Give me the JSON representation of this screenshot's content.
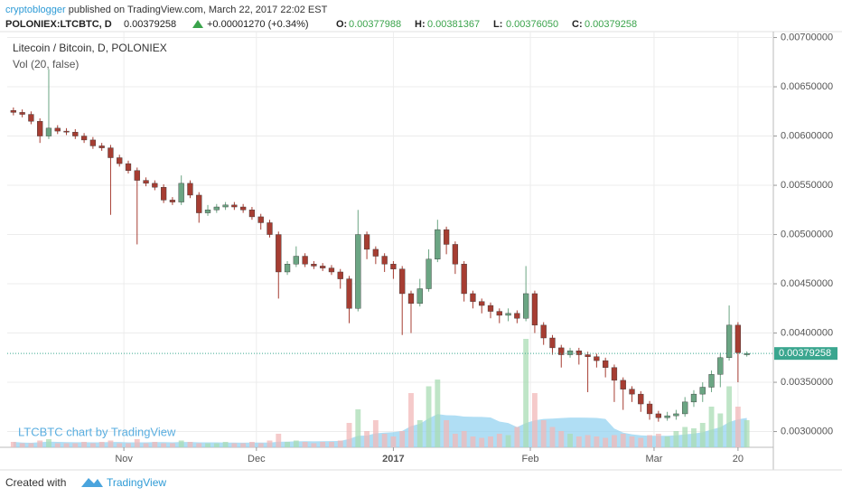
{
  "header": {
    "author": "cryptoblogger",
    "published": "published on TradingView.com, March 22, 2017 22:02 EST",
    "symbol": "POLONIEX:LTCBTC, D",
    "last": "0.00379258",
    "change": "+0.00001270 (+0.34%)",
    "ohlc": [
      {
        "label": "O:",
        "value": "0.00377988"
      },
      {
        "label": "H:",
        "value": "0.00381367"
      },
      {
        "label": "L:",
        "value": "0.00376050"
      },
      {
        "label": "C:",
        "value": "0.00379258"
      }
    ]
  },
  "footer": {
    "created": "Created with",
    "brand": "TradingView"
  },
  "chart_data": {
    "type": "candlestick",
    "title": "Litecoin / Bitcoin, D, POLONIEX",
    "subtitle": "Vol (20, false)",
    "annotation": "LTCBTC chart by TradingView",
    "x": [
      1,
      3,
      5,
      7,
      9,
      11,
      13,
      15,
      17,
      19,
      21,
      23,
      25,
      27,
      29,
      31,
      33,
      35,
      37,
      39,
      41,
      43,
      45,
      47,
      49,
      51,
      53,
      55,
      57,
      59,
      61,
      63,
      65,
      67,
      69,
      71,
      73,
      75,
      77,
      79,
      81,
      83,
      85,
      87,
      89,
      91,
      93,
      95,
      97,
      99,
      101,
      103,
      105,
      107,
      109,
      111,
      113,
      115,
      117,
      119,
      121,
      123,
      125,
      127,
      129,
      131,
      133,
      135,
      137,
      139,
      141,
      143,
      145,
      147,
      149,
      151,
      153,
      155,
      157,
      159,
      161,
      163,
      165,
      167
    ],
    "open": [
      0.00626,
      0.00624,
      0.00622,
      0.00615,
      0.006,
      0.00608,
      0.00605,
      0.00604,
      0.006,
      0.00596,
      0.0059,
      0.00588,
      0.00578,
      0.00572,
      0.00565,
      0.00555,
      0.00552,
      0.00548,
      0.00535,
      0.00533,
      0.00552,
      0.0054,
      0.00522,
      0.00525,
      0.00528,
      0.0053,
      0.00528,
      0.00525,
      0.00518,
      0.00512,
      0.005,
      0.00462,
      0.0047,
      0.00478,
      0.0047,
      0.00468,
      0.00466,
      0.00462,
      0.00455,
      0.00425,
      0.005,
      0.00485,
      0.00478,
      0.0047,
      0.00465,
      0.0044,
      0.0043,
      0.00445,
      0.00475,
      0.00505,
      0.0049,
      0.0047,
      0.0044,
      0.00432,
      0.00428,
      0.00422,
      0.00418,
      0.0042,
      0.00415,
      0.0044,
      0.00408,
      0.00395,
      0.00385,
      0.00378,
      0.00382,
      0.00378,
      0.00376,
      0.00372,
      0.00365,
      0.00352,
      0.00343,
      0.00338,
      0.00328,
      0.00318,
      0.00314,
      0.00316,
      0.00318,
      0.0033,
      0.00338,
      0.00345,
      0.00358,
      0.00375,
      0.00408,
      0.00377988
    ],
    "high": [
      0.00629,
      0.00627,
      0.00625,
      0.00618,
      0.00668,
      0.00611,
      0.00608,
      0.00607,
      0.00603,
      0.00599,
      0.00593,
      0.00591,
      0.00581,
      0.00575,
      0.00568,
      0.00558,
      0.00555,
      0.00551,
      0.00538,
      0.0056,
      0.00555,
      0.00543,
      0.0053,
      0.00531,
      0.00533,
      0.00533,
      0.00531,
      0.00528,
      0.00521,
      0.00515,
      0.00503,
      0.00473,
      0.00488,
      0.00481,
      0.00473,
      0.00471,
      0.00469,
      0.00465,
      0.00458,
      0.00525,
      0.00503,
      0.00488,
      0.00481,
      0.00473,
      0.00468,
      0.00443,
      0.00455,
      0.00485,
      0.00515,
      0.00508,
      0.00493,
      0.00473,
      0.00443,
      0.00435,
      0.00431,
      0.00425,
      0.00425,
      0.00423,
      0.00468,
      0.00443,
      0.00411,
      0.00398,
      0.00388,
      0.00385,
      0.00385,
      0.00381,
      0.00379,
      0.00375,
      0.00368,
      0.00355,
      0.00346,
      0.00341,
      0.00331,
      0.00321,
      0.0032,
      0.00322,
      0.00335,
      0.00342,
      0.0035,
      0.00362,
      0.0038,
      0.00428,
      0.00411,
      0.00381367
    ],
    "low": [
      0.00621,
      0.00619,
      0.00612,
      0.00593,
      0.00597,
      0.00602,
      0.00601,
      0.00597,
      0.00593,
      0.00587,
      0.00585,
      0.0052,
      0.00569,
      0.00562,
      0.0049,
      0.00549,
      0.00545,
      0.00532,
      0.0053,
      0.0053,
      0.00537,
      0.00512,
      0.00519,
      0.00522,
      0.00525,
      0.00525,
      0.00522,
      0.00515,
      0.00505,
      0.00497,
      0.00435,
      0.00459,
      0.00467,
      0.00467,
      0.00465,
      0.00463,
      0.00459,
      0.00445,
      0.0041,
      0.00422,
      0.00475,
      0.0047,
      0.00462,
      0.00455,
      0.00398,
      0.004,
      0.00427,
      0.00442,
      0.00472,
      0.0048,
      0.0046,
      0.00432,
      0.00425,
      0.0042,
      0.00415,
      0.0041,
      0.00412,
      0.0041,
      0.00412,
      0.004,
      0.00388,
      0.00378,
      0.00365,
      0.00375,
      0.00368,
      0.0034,
      0.00365,
      0.00355,
      0.0033,
      0.00322,
      0.0033,
      0.0032,
      0.00312,
      0.0031,
      0.00311,
      0.00312,
      0.00315,
      0.00325,
      0.0033,
      0.0034,
      0.00345,
      0.00372,
      0.0035,
      0.0037605
    ],
    "close": [
      0.00624,
      0.00622,
      0.00615,
      0.006,
      0.00608,
      0.00605,
      0.00604,
      0.006,
      0.00596,
      0.0059,
      0.00588,
      0.00578,
      0.00572,
      0.00565,
      0.00555,
      0.00552,
      0.00548,
      0.00535,
      0.00533,
      0.00552,
      0.0054,
      0.00522,
      0.00525,
      0.00528,
      0.0053,
      0.00528,
      0.00525,
      0.00518,
      0.00512,
      0.005,
      0.00462,
      0.0047,
      0.00478,
      0.0047,
      0.00468,
      0.00466,
      0.00462,
      0.00455,
      0.00425,
      0.005,
      0.00485,
      0.00478,
      0.0047,
      0.00465,
      0.0044,
      0.0043,
      0.00445,
      0.00475,
      0.00505,
      0.0049,
      0.0047,
      0.0044,
      0.00432,
      0.00428,
      0.00422,
      0.00418,
      0.0042,
      0.00415,
      0.0044,
      0.00408,
      0.00395,
      0.00385,
      0.00378,
      0.00382,
      0.00378,
      0.00376,
      0.00372,
      0.00365,
      0.00352,
      0.00343,
      0.00338,
      0.00328,
      0.00318,
      0.00314,
      0.00316,
      0.00318,
      0.0033,
      0.00338,
      0.00345,
      0.00358,
      0.00375,
      0.00408,
      0.0038,
      0.00379258
    ],
    "volume": [
      4,
      3,
      3,
      5,
      6,
      3,
      3,
      3,
      4,
      3,
      4,
      5,
      3,
      3,
      6,
      3,
      4,
      3,
      3,
      5,
      4,
      3,
      3,
      3,
      4,
      3,
      3,
      4,
      3,
      5,
      10,
      4,
      5,
      4,
      3,
      4,
      4,
      5,
      18,
      28,
      12,
      20,
      10,
      8,
      12,
      40,
      20,
      45,
      50,
      20,
      10,
      12,
      8,
      7,
      8,
      10,
      9,
      15,
      80,
      40,
      20,
      15,
      12,
      10,
      8,
      9,
      8,
      7,
      9,
      10,
      8,
      7,
      9,
      10,
      8,
      12,
      15,
      14,
      18,
      30,
      25,
      45,
      30,
      20
    ],
    "up_color": "#6ba583",
    "down_color": "#a63d32",
    "volume_up_color": "#a9dcb4",
    "volume_down_color": "#f2b8b8",
    "volume_ma_color": "#8fd0ef",
    "price_line_color": "#3aa68f",
    "xlim": [
      -0.4,
      173
    ],
    "ylim": [
      0.00284,
      0.00706
    ],
    "y2lim": [
      0,
      100
    ],
    "xticks": [
      {
        "value": 26,
        "label": "Nov"
      },
      {
        "value": 56,
        "label": "Dec"
      },
      {
        "value": 87,
        "label": "2017"
      },
      {
        "value": 118,
        "label": "Feb"
      },
      {
        "value": 146,
        "label": "Mar"
      },
      {
        "value": 165,
        "label": "20"
      }
    ],
    "yticks": [
      {
        "value": 0.003,
        "label": "0.00300000"
      },
      {
        "value": 0.0035,
        "label": "0.00350000"
      },
      {
        "value": 0.004,
        "label": "0.00400000"
      },
      {
        "value": 0.0045,
        "label": "0.00450000"
      },
      {
        "value": 0.005,
        "label": "0.00500000"
      },
      {
        "value": 0.0055,
        "label": "0.00550000"
      },
      {
        "value": 0.006,
        "label": "0.00600000"
      },
      {
        "value": 0.0065,
        "label": "0.00650000"
      },
      {
        "value": 0.007,
        "label": "0.00700000"
      }
    ],
    "grid": true
  }
}
